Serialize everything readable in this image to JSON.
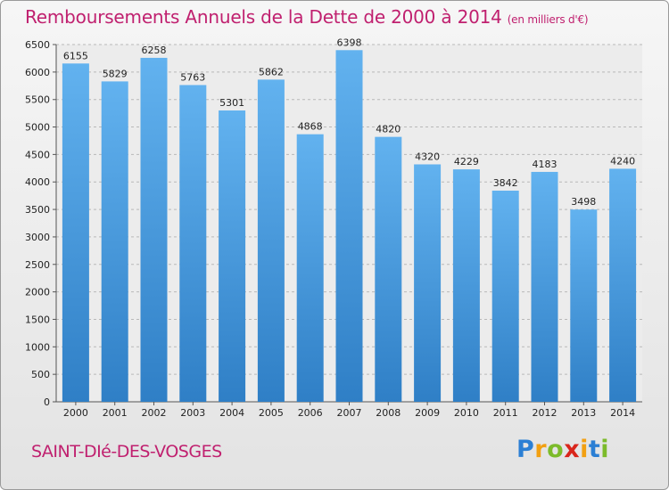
{
  "chart_data": {
    "type": "bar",
    "title": "Remboursements Annuels de la Dette de 2000 à 2014",
    "unit": "(en milliers d'€)",
    "categories": [
      "2000",
      "2001",
      "2002",
      "2003",
      "2004",
      "2005",
      "2006",
      "2007",
      "2008",
      "2009",
      "2010",
      "2011",
      "2012",
      "2013",
      "2014"
    ],
    "values": [
      6155,
      5829,
      6258,
      5763,
      5301,
      5862,
      4868,
      6398,
      4820,
      4320,
      4229,
      3842,
      4183,
      3498,
      4240
    ],
    "ylim": [
      0,
      6500
    ],
    "ytick_step": 500,
    "grid": true,
    "bar_color": "#4a9ee0"
  },
  "place": "SAINT-DIé-DES-VOSGES",
  "logo": {
    "letters": [
      "P",
      "r",
      "o",
      "x",
      "i",
      "t",
      "i"
    ],
    "colors": [
      "#2b7fd4",
      "#f2a012",
      "#7cbb2a",
      "#d9261c",
      "#f2a012",
      "#2b7fd4",
      "#7cbb2a"
    ]
  }
}
